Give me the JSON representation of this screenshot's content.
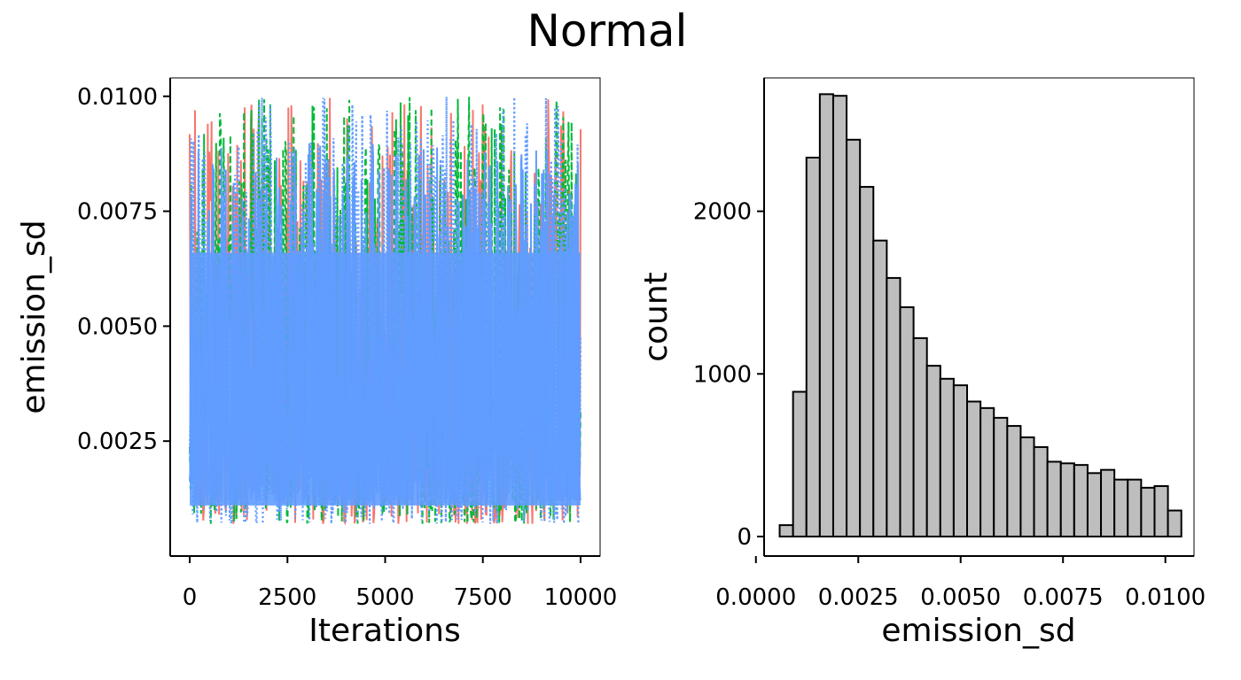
{
  "figure": {
    "title": "Normal"
  },
  "chart_data": [
    {
      "type": "line",
      "panel": "trace",
      "xlabel": "Iterations",
      "ylabel": "emission_sd",
      "xlim": [
        -500,
        10500
      ],
      "ylim": [
        0.0,
        0.0104
      ],
      "x_ticks": [
        0,
        2500,
        5000,
        7500,
        10000
      ],
      "x_tick_labels": [
        "0",
        "2500",
        "5000",
        "7500",
        "10000"
      ],
      "y_ticks": [
        0.0025,
        0.005,
        0.0075,
        0.01
      ],
      "y_tick_labels": [
        "0.0025",
        "0.0050",
        "0.0075",
        "0.0100"
      ],
      "iterations": [
        0,
        10000
      ],
      "value_range": [
        0.0007,
        0.01
      ],
      "series": [
        {
          "color": "#F8766D",
          "style": "solid"
        },
        {
          "color": "#00BA38",
          "style": "dashed"
        },
        {
          "color": "#619CFF",
          "style": "dotted"
        }
      ],
      "grid": false,
      "legend": "none"
    },
    {
      "type": "bar",
      "panel": "histogram",
      "xlabel": "emission_sd",
      "ylabel": "count",
      "xlim": [
        0.0002,
        0.0107
      ],
      "ylim": [
        -120,
        2820
      ],
      "x_ticks": [
        0.0,
        0.0025,
        0.005,
        0.0075,
        0.01
      ],
      "x_tick_labels": [
        "0.0000",
        "0.0025",
        "0.0050",
        "0.0075",
        "0.0100"
      ],
      "y_ticks": [
        0,
        1000,
        2000
      ],
      "y_tick_labels": [
        "0",
        "1000",
        "2000"
      ],
      "bin_start": 0.00058,
      "bin_width": 0.000327,
      "values": [
        70,
        890,
        2330,
        2720,
        2710,
        2440,
        2150,
        1820,
        1590,
        1410,
        1220,
        1050,
        970,
        930,
        830,
        790,
        730,
        680,
        610,
        550,
        460,
        450,
        440,
        390,
        410,
        350,
        350,
        300,
        310,
        160
      ],
      "bar_fill": "#BEBEBE",
      "bar_stroke": "#000000",
      "grid": false,
      "legend": "none"
    }
  ]
}
